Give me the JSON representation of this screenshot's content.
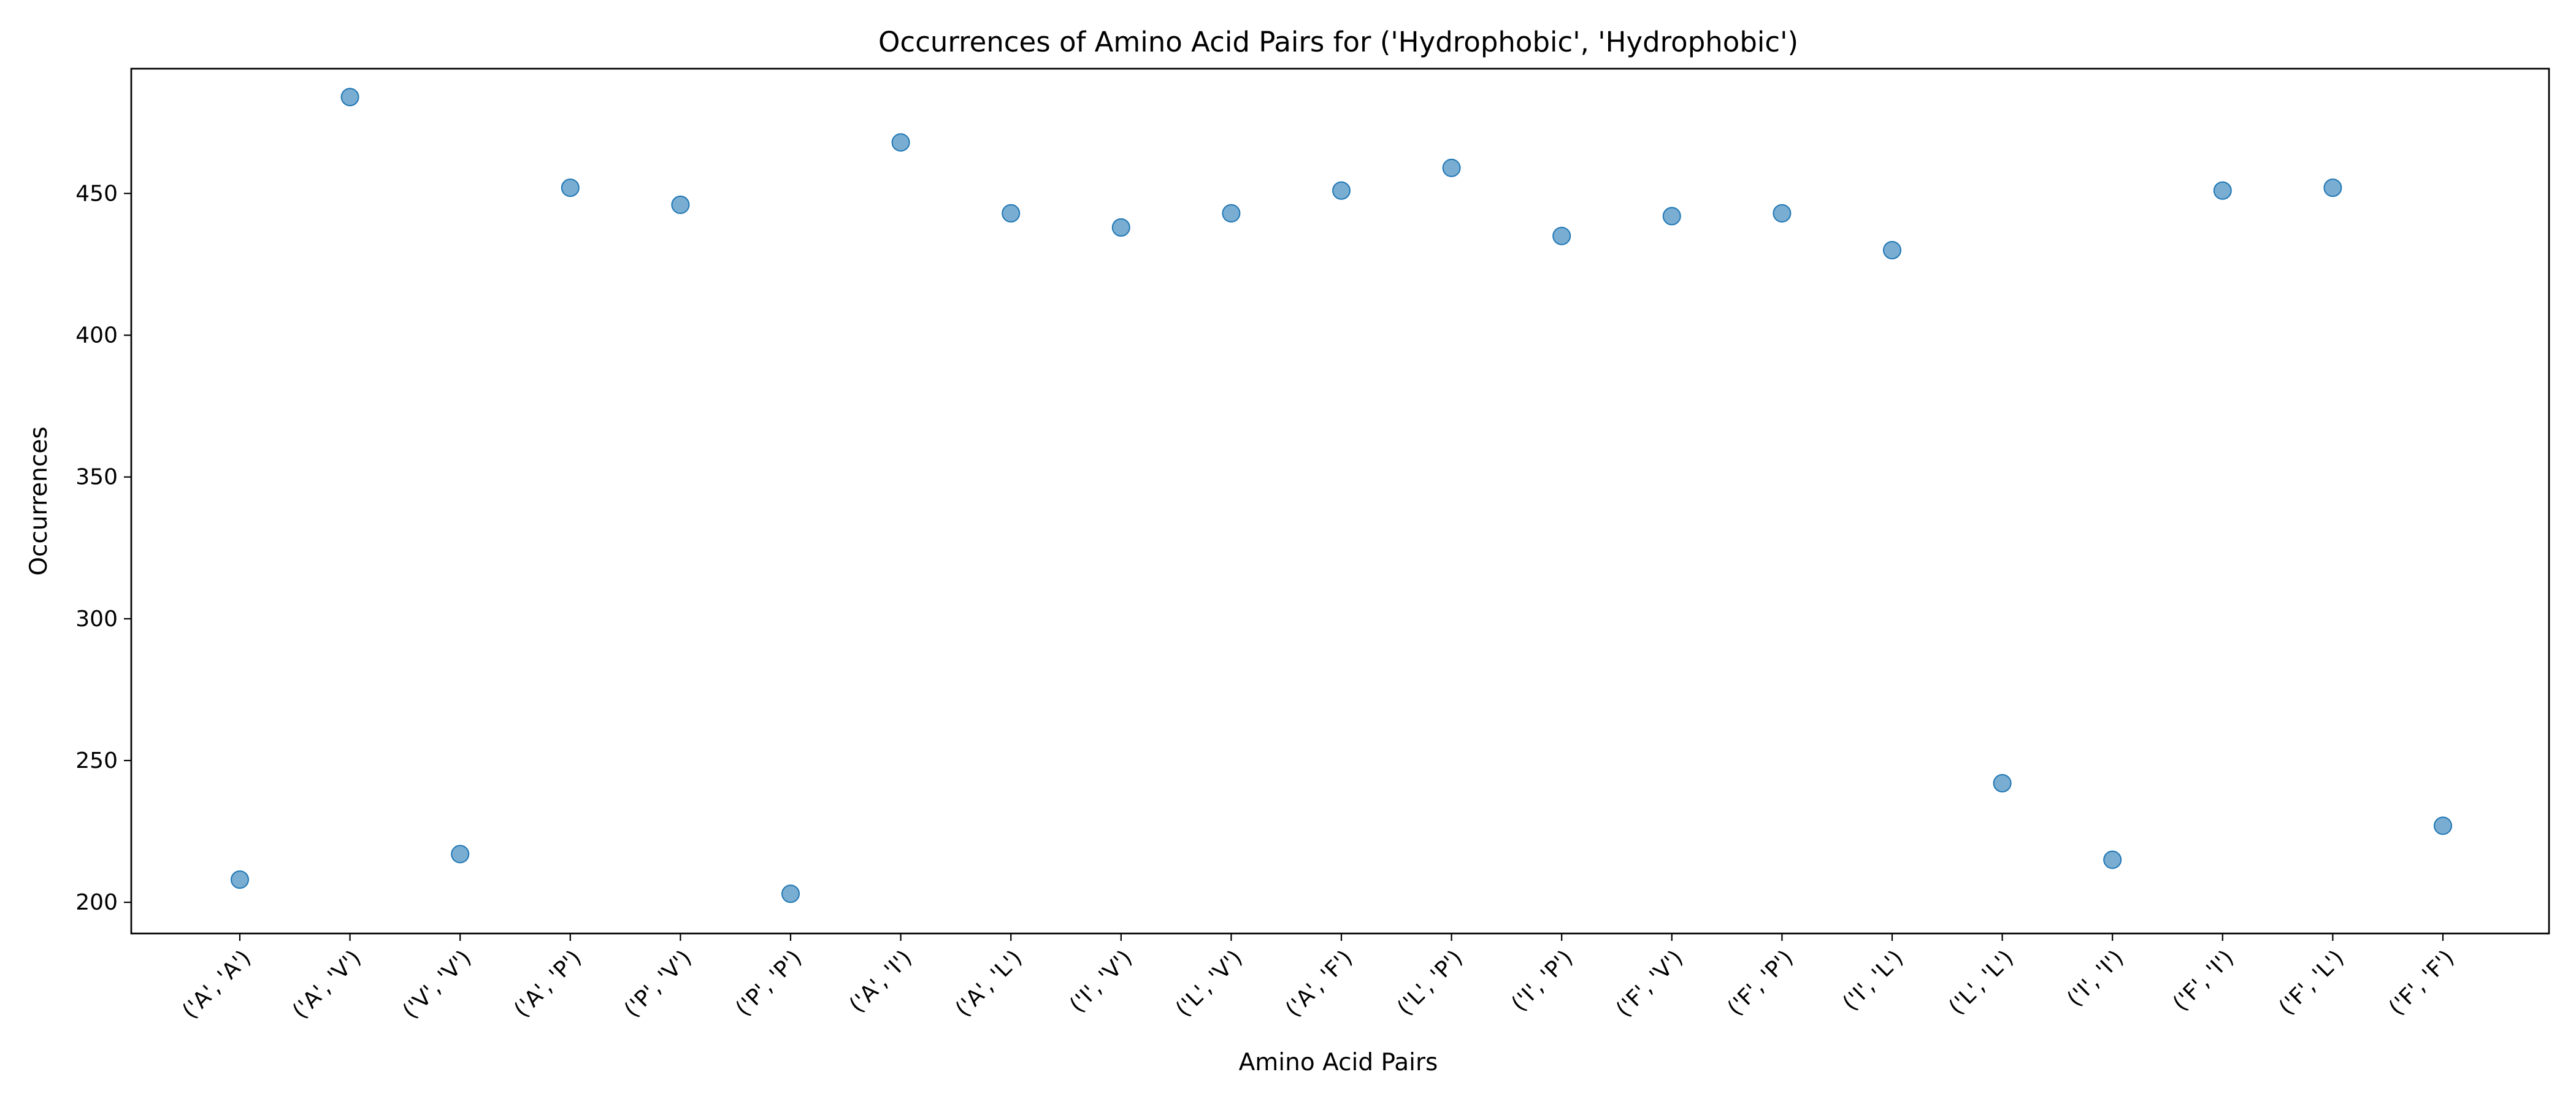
{
  "chart_data": {
    "type": "scatter",
    "title": "Occurrences of Amino Acid Pairs for ('Hydrophobic', 'Hydrophobic')",
    "xlabel": "Amino Acid Pairs",
    "ylabel": "Occurrences",
    "categories": [
      "('A', 'A')",
      "('A', 'V')",
      "('V', 'V')",
      "('A', 'P')",
      "('P', 'V')",
      "('P', 'P')",
      "('A', 'I')",
      "('A', 'L')",
      "('I', 'V')",
      "('L', 'V')",
      "('A', 'F')",
      "('L', 'P')",
      "('I', 'P')",
      "('F', 'V')",
      "('F', 'P')",
      "('I', 'L')",
      "('L', 'L')",
      "('I', 'I')",
      "('F', 'I')",
      "('F', 'L')",
      "('F', 'F')"
    ],
    "values": [
      208,
      484,
      217,
      452,
      446,
      203,
      468,
      443,
      438,
      443,
      451,
      459,
      435,
      442,
      443,
      430,
      242,
      215,
      451,
      452,
      227
    ],
    "yticks": [
      200,
      250,
      300,
      350,
      400,
      450
    ],
    "ylim": [
      189,
      494
    ],
    "grid": false,
    "color": "#1f77b4"
  }
}
